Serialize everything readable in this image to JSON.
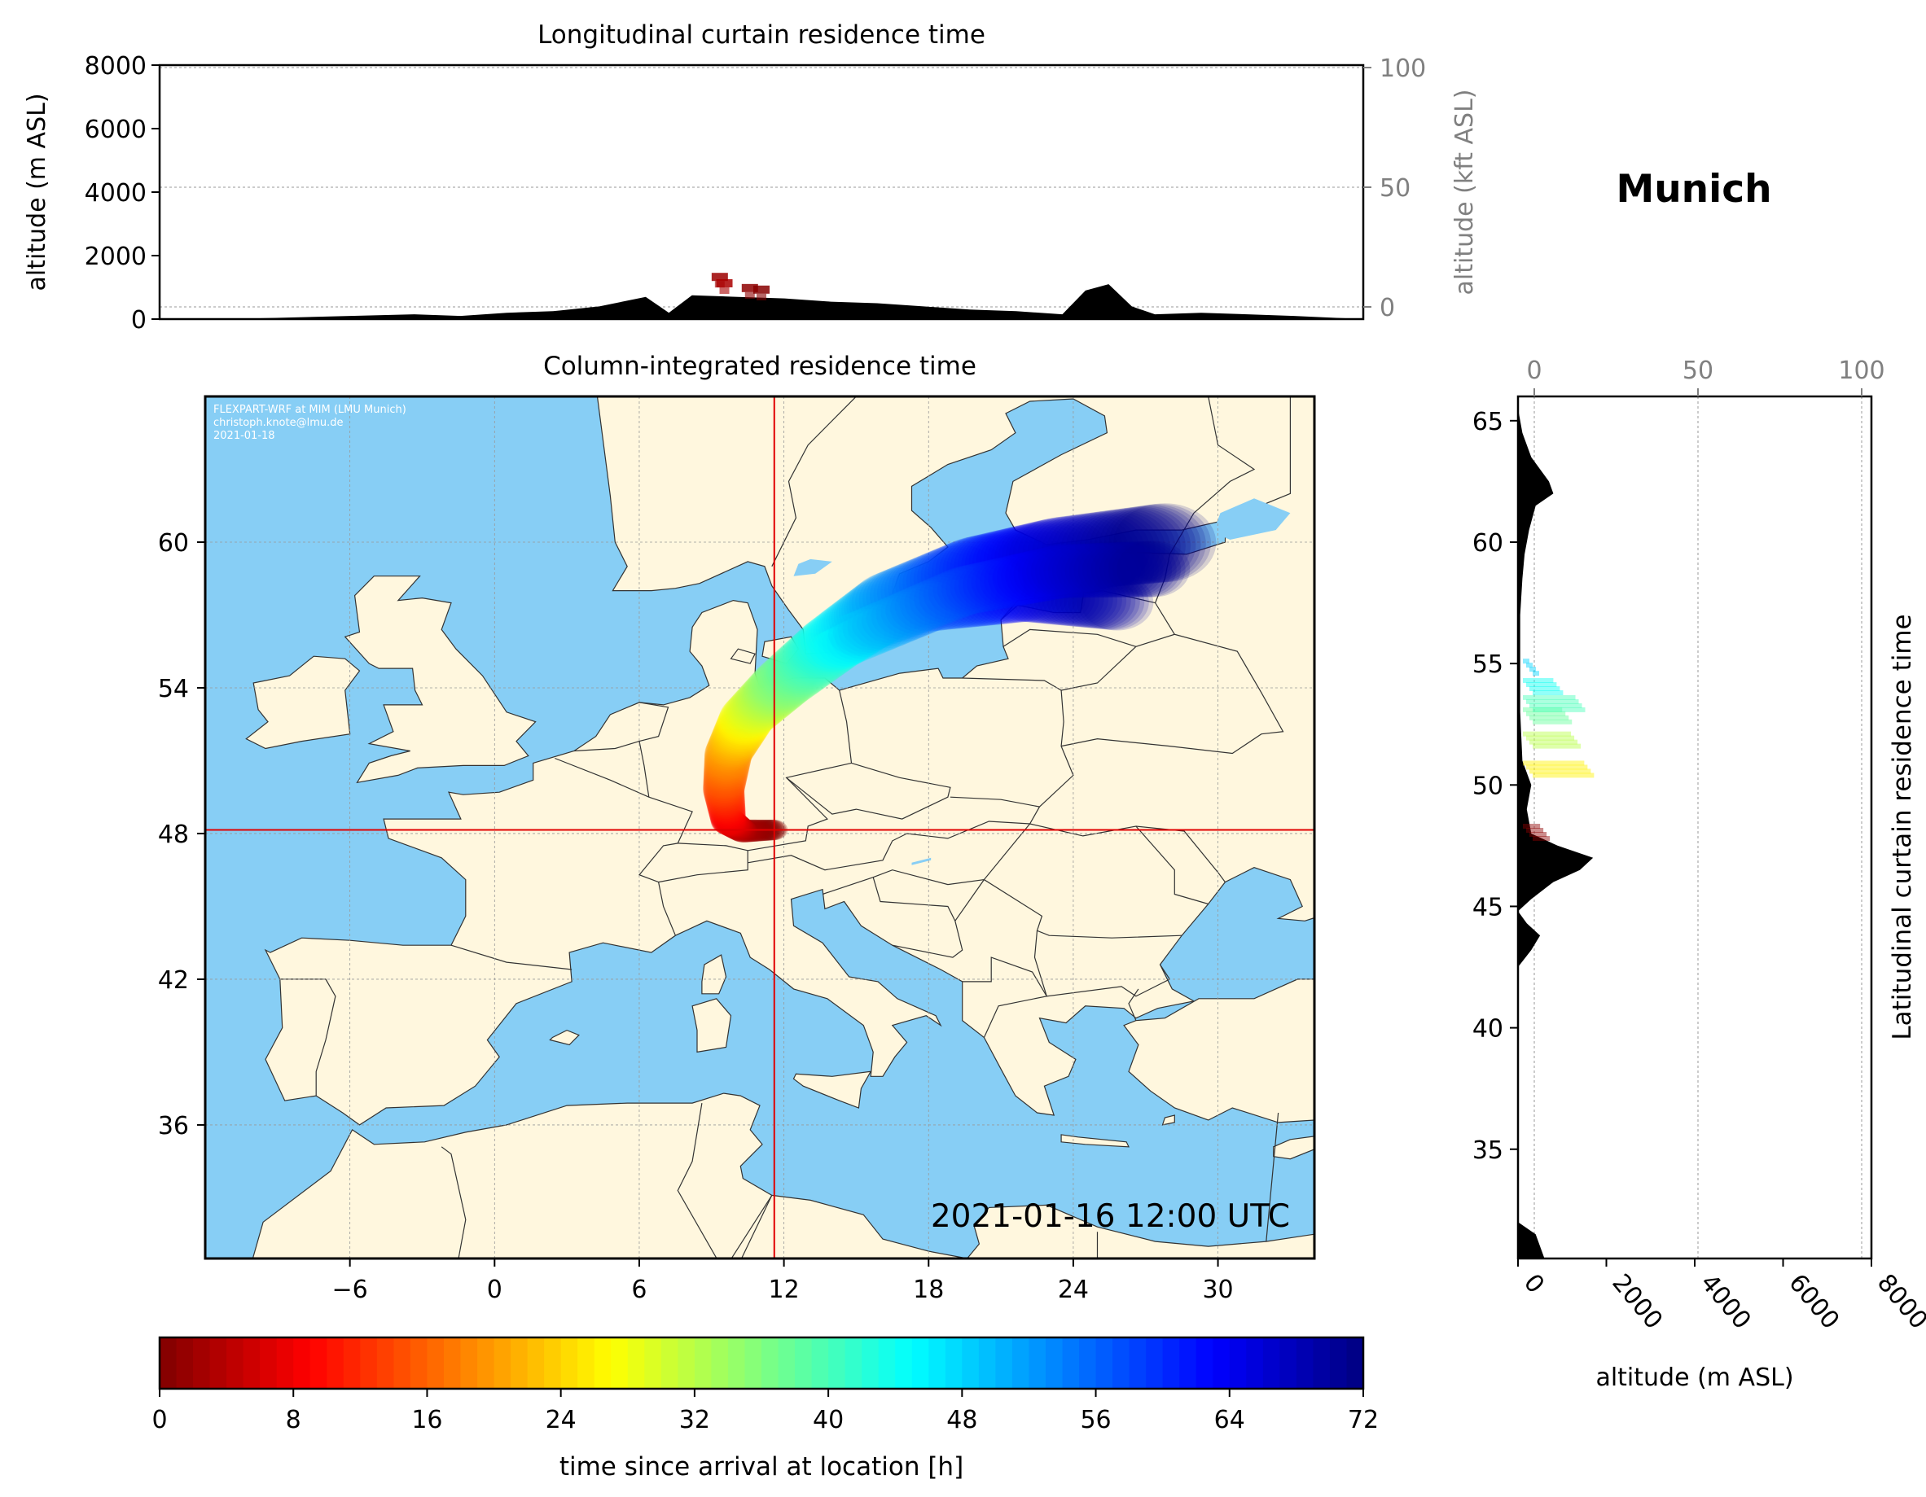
{
  "figure": {
    "location_title": "Munich",
    "timestamp": "2021-01-16 12:00 UTC",
    "credit_lines": [
      "FLEXPART-WRF at MIM (LMU Munich)",
      "christoph.knote@lmu.de",
      "2021-01-18"
    ]
  },
  "colors": {
    "ocean": "#87CEF5",
    "land": "#FFF7DE",
    "terrain": "#000000",
    "crosshair": "#E00000"
  },
  "chart_data": [
    {
      "type": "area",
      "id": "longitudinal",
      "title": "Longitudinal curtain residence time",
      "ylabel": "altitude (m ASL)",
      "ylabel_right": "altitude (kft ASL)",
      "ylim": [
        0,
        8000
      ],
      "yticks": [
        "0",
        "2000",
        "4000",
        "6000",
        "8000"
      ],
      "yticks_right": [
        "0",
        "50",
        "100"
      ],
      "yticks_right_values_kft": [
        0,
        50,
        100
      ],
      "grid": true,
      "terrain": {
        "x_lon": [
          -12,
          -4,
          -2,
          0,
          2,
          4,
          6,
          7,
          8,
          10,
          12,
          14,
          16,
          18,
          20,
          22,
          24,
          25,
          26,
          27,
          28,
          30,
          32,
          34
        ],
        "y_m": [
          0,
          150,
          100,
          200,
          250,
          400,
          700,
          200,
          750,
          700,
          650,
          550,
          500,
          400,
          300,
          250,
          150,
          900,
          1100,
          400,
          150,
          200,
          150,
          100
        ]
      },
      "plume": [
        {
          "x_lon": 9.2,
          "y_m": 1200,
          "hours": 2
        },
        {
          "x_lon": 9.4,
          "y_m": 1000,
          "hours": 3
        },
        {
          "x_lon": 10.5,
          "y_m": 850,
          "hours": 1
        },
        {
          "x_lon": 11.0,
          "y_m": 800,
          "hours": 0.5
        }
      ]
    },
    {
      "type": "heatmap",
      "id": "column",
      "title": "Column-integrated residence time",
      "xlim": [
        -12,
        34
      ],
      "ylim": [
        30.5,
        66
      ],
      "xticks": [
        "−6",
        "0",
        "6",
        "12",
        "18",
        "24",
        "30"
      ],
      "xtick_values": [
        -6,
        0,
        6,
        12,
        18,
        24,
        30
      ],
      "yticks": [
        "36",
        "42",
        "48",
        "54",
        "60"
      ],
      "ytick_values": [
        36,
        42,
        48,
        54,
        60
      ],
      "grid": true,
      "release_point": {
        "lon": 11.6,
        "lat": 48.15
      },
      "plume_centerline": [
        {
          "lon": 11.6,
          "lat": 48.15,
          "hours": 0
        },
        {
          "lon": 10.3,
          "lat": 48.1,
          "hours": 3
        },
        {
          "lon": 9.7,
          "lat": 48.5,
          "hours": 8
        },
        {
          "lon": 9.5,
          "lat": 49.8,
          "hours": 14
        },
        {
          "lon": 9.7,
          "lat": 51.3,
          "hours": 20
        },
        {
          "lon": 10.5,
          "lat": 52.8,
          "hours": 28
        },
        {
          "lon": 12.0,
          "lat": 54.2,
          "hours": 36
        },
        {
          "lon": 14.0,
          "lat": 55.8,
          "hours": 44
        },
        {
          "lon": 16.5,
          "lat": 57.5,
          "hours": 52
        },
        {
          "lon": 20.0,
          "lat": 58.8,
          "hours": 60
        },
        {
          "lon": 23.5,
          "lat": 59.5,
          "hours": 66
        },
        {
          "lon": 28.0,
          "lat": 60.0,
          "hours": 72
        }
      ],
      "plume_branches": [
        [
          {
            "lon": 14.0,
            "lat": 55.5,
            "hours": 44
          },
          {
            "lon": 18.0,
            "lat": 57.3,
            "hours": 56
          },
          {
            "lon": 22.0,
            "lat": 57.8,
            "hours": 64
          },
          {
            "lon": 26.0,
            "lat": 57.5,
            "hours": 70
          }
        ],
        [
          {
            "lon": 15.0,
            "lat": 56.2,
            "hours": 48
          },
          {
            "lon": 19.5,
            "lat": 58.0,
            "hours": 58
          },
          {
            "lon": 23.5,
            "lat": 58.8,
            "hours": 66
          },
          {
            "lon": 27.5,
            "lat": 58.9,
            "hours": 71
          }
        ]
      ]
    },
    {
      "type": "area",
      "id": "latitudinal",
      "title": "Latitudinal curtain residence time",
      "xlabel": "altitude (m ASL)",
      "xlim": [
        0,
        8000
      ],
      "xticks": [
        "0",
        "2000",
        "4000",
        "6000",
        "8000"
      ],
      "xticks_top": [
        "0",
        "50",
        "100"
      ],
      "xticks_top_values_kft": [
        0,
        50,
        100
      ],
      "ylim": [
        30.5,
        66
      ],
      "yticks": [
        "35",
        "40",
        "45",
        "50",
        "55",
        "60",
        "65"
      ],
      "ytick_values": [
        35,
        40,
        45,
        50,
        55,
        60,
        65
      ],
      "grid": true,
      "terrain": {
        "y_lat": [
          30.5,
          31.5,
          32,
          33,
          35,
          38,
          42.5,
          43.2,
          43.8,
          44.3,
          44.8,
          45.3,
          46,
          46.5,
          47,
          47.5,
          48,
          49,
          50,
          51,
          53,
          55,
          57,
          58.5,
          59.5,
          60.5,
          61.5,
          62,
          62.5,
          63.5,
          64.5,
          65.5,
          66
        ],
        "x_m": [
          600,
          400,
          0,
          0,
          0,
          0,
          0,
          300,
          500,
          200,
          0,
          300,
          800,
          1400,
          1700,
          900,
          300,
          200,
          300,
          100,
          50,
          50,
          50,
          100,
          150,
          250,
          400,
          800,
          700,
          300,
          100,
          0,
          0
        ]
      },
      "plume": [
        {
          "lat": 48.2,
          "x_m": 500,
          "hours": 1
        },
        {
          "lat": 50.8,
          "x_m": 1500,
          "hours": 26
        },
        {
          "lat": 52.0,
          "x_m": 1200,
          "hours": 32
        },
        {
          "lat": 53.0,
          "x_m": 1000,
          "hours": 38
        },
        {
          "lat": 53.5,
          "x_m": 1300,
          "hours": 40
        },
        {
          "lat": 54.2,
          "x_m": 800,
          "hours": 44
        },
        {
          "lat": 55.0,
          "x_m": 200,
          "hours": 48
        }
      ]
    },
    {
      "type": "colorbar",
      "id": "colorbar",
      "label": "time since arrival at location [h]",
      "range": [
        0,
        72
      ],
      "ticks": [
        "0",
        "8",
        "16",
        "24",
        "32",
        "40",
        "48",
        "56",
        "64",
        "72"
      ],
      "tick_values": [
        0,
        8,
        16,
        24,
        32,
        40,
        48,
        56,
        64,
        72
      ],
      "colormap": "jet"
    }
  ]
}
